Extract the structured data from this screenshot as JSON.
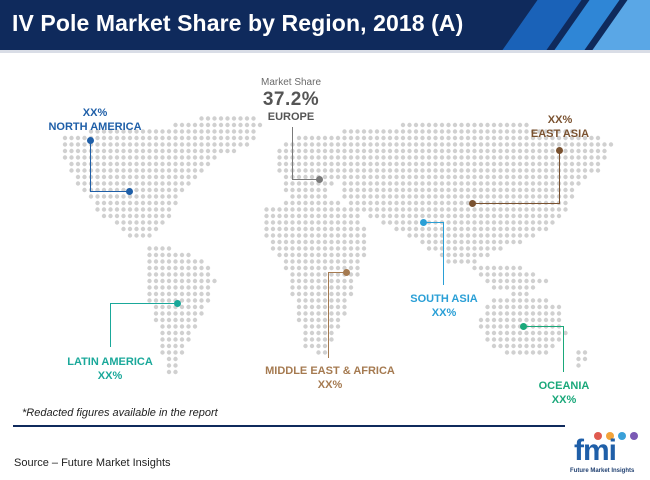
{
  "header": {
    "title": "IV Pole Market Share by Region, 2018 (A)"
  },
  "highlight": {
    "caption": "Market Share",
    "value": "37.2%",
    "region": "EUROPE"
  },
  "regions": {
    "north_america": {
      "share": "XX%",
      "name": "NORTH AMERICA",
      "color": "#1f5fa8"
    },
    "east_asia": {
      "share": "XX%",
      "name": "EAST ASIA",
      "color": "#7a5230"
    },
    "south_asia": {
      "share": "XX%",
      "name": "SOUTH ASIA",
      "color": "#2a9fd6"
    },
    "latin_america": {
      "share": "XX%",
      "name": "LATIN AMERICA",
      "color": "#1aa89a"
    },
    "middle_east_africa": {
      "share": "XX%",
      "name": "MIDDLE EAST & AFRICA",
      "color": "#a57a50"
    },
    "oceania": {
      "share": "XX%",
      "name": "OCEANIA",
      "color": "#1aa87a"
    },
    "europe": {
      "color": "#7a7a7a"
    }
  },
  "footnote": "*Redacted figures available in the report",
  "source": "Source – Future Market Insights",
  "logo": {
    "word": "fmi",
    "tagline": "Future Market Insights",
    "colors": [
      "#e05a4f",
      "#f2a33a",
      "#3aa0d8",
      "#7b5ab5"
    ]
  },
  "colors": {
    "header_bg": "#0f2a5c",
    "map_dot": "#d0d0d0"
  }
}
